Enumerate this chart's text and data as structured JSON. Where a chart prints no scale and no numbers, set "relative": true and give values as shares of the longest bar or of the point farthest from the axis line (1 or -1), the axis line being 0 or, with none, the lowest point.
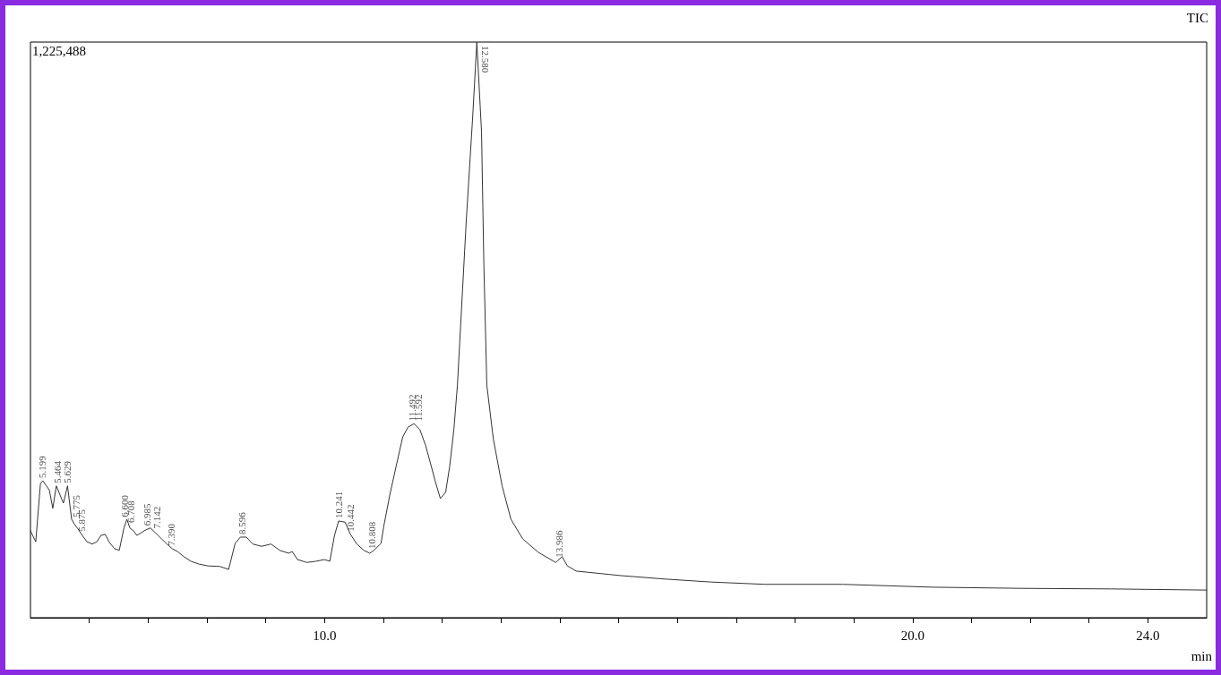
{
  "chart_data": {
    "type": "line",
    "relative": true,
    "xlabel": "min",
    "annotations": [
      "1,225,488",
      "TIC",
      {
        "text": "5.199",
        "x": 5.199,
        "y": 0.238
      },
      {
        "text": "5.464",
        "x": 5.464,
        "y": 0.229
      },
      {
        "text": "5.629",
        "x": 5.629,
        "y": 0.229
      },
      {
        "text": "5.775",
        "x": 5.775,
        "y": 0.17
      },
      {
        "text": "5.875",
        "x": 5.875,
        "y": 0.145
      },
      {
        "text": "6.600",
        "x": 6.6,
        "y": 0.17
      },
      {
        "text": "6.708",
        "x": 6.708,
        "y": 0.16
      },
      {
        "text": "6.985",
        "x": 6.985,
        "y": 0.155
      },
      {
        "text": "7.142",
        "x": 7.142,
        "y": 0.15
      },
      {
        "text": "7.390",
        "x": 7.39,
        "y": 0.12
      },
      {
        "text": "8.596",
        "x": 8.596,
        "y": 0.14
      },
      {
        "text": "10.241",
        "x": 10.241,
        "y": 0.168
      },
      {
        "text": "10.442",
        "x": 10.442,
        "y": 0.145
      },
      {
        "text": "10.808",
        "x": 10.808,
        "y": 0.115
      },
      {
        "text": "11.492",
        "x": 11.492,
        "y": 0.337
      },
      {
        "text": "11.592",
        "x": 11.592,
        "y": 0.337
      },
      {
        "text": "12.580",
        "x": 12.58,
        "y": 1.0
      },
      {
        "text": "13.986",
        "x": 13.986,
        "y": 0.1
      }
    ],
    "xlim": [
      5,
      25
    ],
    "xticks": [
      {
        "value": 6,
        "label": null
      },
      {
        "value": 7,
        "label": null
      },
      {
        "value": 8,
        "label": null
      },
      {
        "value": 9,
        "label": null
      },
      {
        "value": 10,
        "label": "10.0"
      },
      {
        "value": 11,
        "label": null
      },
      {
        "value": 12,
        "label": null
      },
      {
        "value": 13,
        "label": null
      },
      {
        "value": 14,
        "label": null
      },
      {
        "value": 15,
        "label": null
      },
      {
        "value": 16,
        "label": null
      },
      {
        "value": 17,
        "label": null
      },
      {
        "value": 18,
        "label": null
      },
      {
        "value": 19,
        "label": null
      },
      {
        "value": 20,
        "label": "20.0"
      },
      {
        "value": 21,
        "label": null
      },
      {
        "value": 22,
        "label": null
      },
      {
        "value": 23,
        "label": null
      },
      {
        "value": 24,
        "label": "24.0"
      }
    ],
    "series": [
      {
        "color": "#333333",
        "x": [
          5.0,
          5.09,
          5.17,
          5.21,
          5.32,
          5.38,
          5.44,
          5.56,
          5.63,
          5.7,
          5.75,
          5.81,
          5.88,
          5.96,
          6.05,
          6.13,
          6.2,
          6.27,
          6.34,
          6.43,
          6.51,
          6.59,
          6.64,
          6.69,
          6.75,
          6.81,
          6.89,
          6.95,
          7.04,
          7.12,
          7.23,
          7.32,
          7.41,
          7.5,
          7.61,
          7.73,
          7.87,
          8.02,
          8.22,
          8.37,
          8.48,
          8.57,
          8.67,
          8.78,
          8.93,
          9.09,
          9.24,
          9.39,
          9.45,
          9.54,
          9.7,
          9.85,
          10.0,
          10.09,
          10.17,
          10.24,
          10.35,
          10.44,
          10.55,
          10.67,
          10.77,
          10.84,
          10.96,
          11.01,
          11.11,
          11.22,
          11.33,
          11.42,
          11.52,
          11.62,
          11.72,
          11.8,
          11.88,
          11.97,
          12.06,
          12.13,
          12.2,
          12.26,
          12.41,
          12.52,
          12.59,
          12.67,
          12.71,
          12.76,
          12.87,
          13.02,
          13.17,
          13.37,
          13.63,
          13.93,
          14.04,
          14.13,
          14.28,
          15.05,
          15.81,
          16.57,
          17.48,
          18.81,
          20.34,
          21.86,
          23.38,
          25.0
        ],
        "values": [
          0.151,
          0.132,
          0.233,
          0.238,
          0.222,
          0.19,
          0.229,
          0.199,
          0.229,
          0.171,
          0.162,
          0.154,
          0.143,
          0.132,
          0.128,
          0.132,
          0.143,
          0.145,
          0.131,
          0.12,
          0.117,
          0.156,
          0.171,
          0.156,
          0.151,
          0.143,
          0.148,
          0.152,
          0.156,
          0.148,
          0.137,
          0.128,
          0.12,
          0.115,
          0.106,
          0.098,
          0.093,
          0.09,
          0.089,
          0.084,
          0.129,
          0.14,
          0.14,
          0.128,
          0.124,
          0.128,
          0.117,
          0.112,
          0.115,
          0.101,
          0.096,
          0.098,
          0.101,
          0.098,
          0.143,
          0.168,
          0.166,
          0.145,
          0.128,
          0.117,
          0.112,
          0.117,
          0.129,
          0.16,
          0.213,
          0.264,
          0.314,
          0.331,
          0.337,
          0.327,
          0.299,
          0.269,
          0.238,
          0.207,
          0.218,
          0.264,
          0.327,
          0.404,
          0.689,
          0.871,
          1.0,
          0.844,
          0.611,
          0.404,
          0.311,
          0.229,
          0.171,
          0.137,
          0.114,
          0.096,
          0.106,
          0.09,
          0.081,
          0.073,
          0.067,
          0.062,
          0.058,
          0.058,
          0.053,
          0.051,
          0.05,
          0.048
        ]
      }
    ],
    "grid": false,
    "marker": "none",
    "line_style": "solid"
  }
}
